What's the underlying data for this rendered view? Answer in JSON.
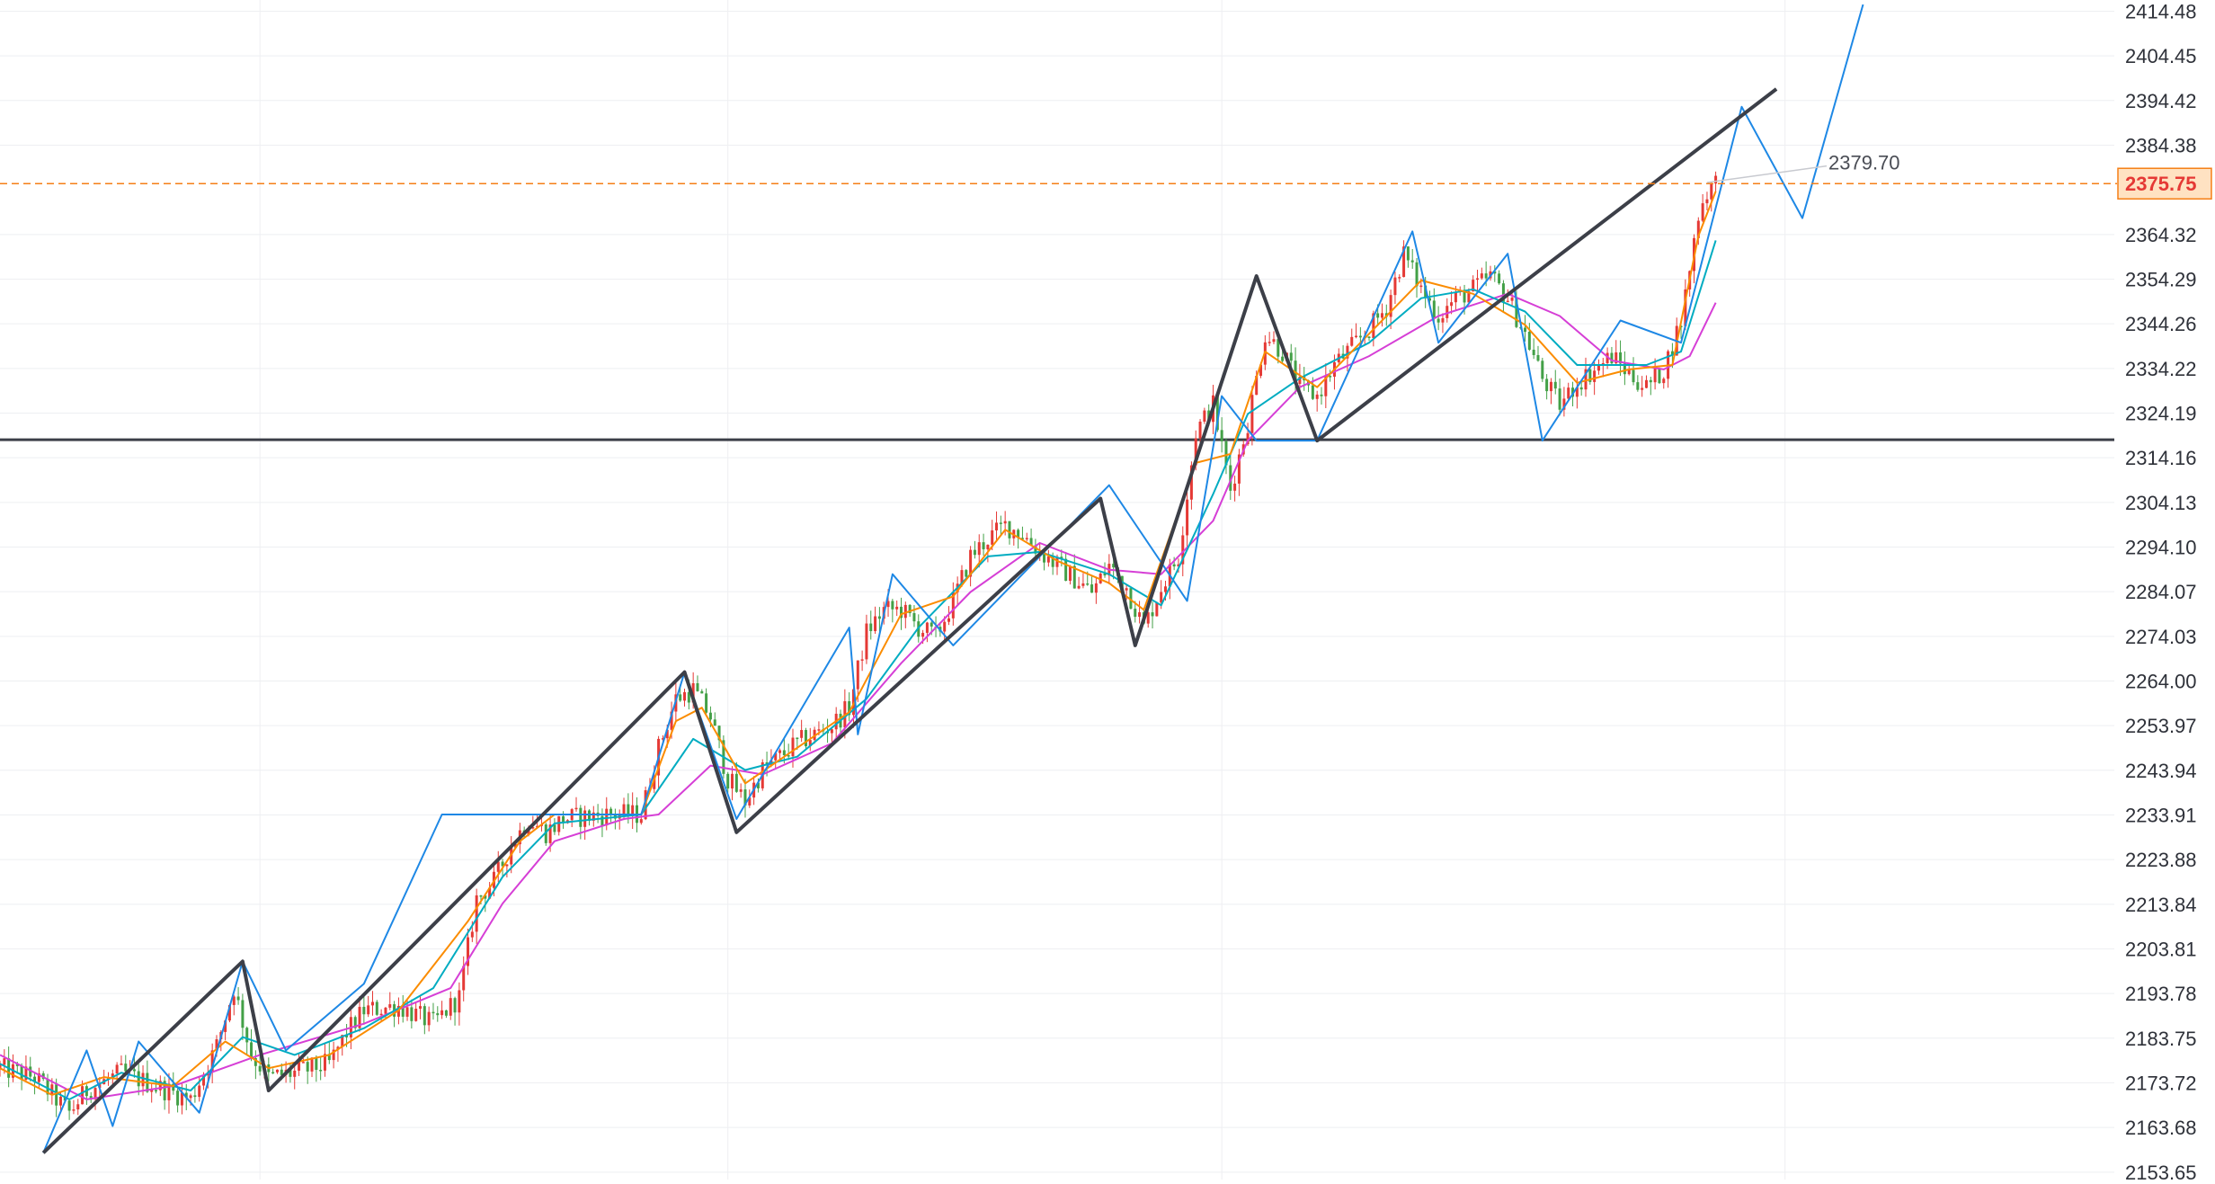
{
  "chart_data": {
    "type": "candlestick",
    "y_axis": {
      "position": "right",
      "tick_labels": [
        "2414.48",
        "2404.45",
        "2394.42",
        "2384.38",
        "2364.32",
        "2354.29",
        "2344.26",
        "2334.22",
        "2324.19",
        "2314.16",
        "2304.13",
        "2294.10",
        "2284.07",
        "2274.03",
        "2264.00",
        "2253.97",
        "2243.94",
        "2233.91",
        "2223.88",
        "2213.84",
        "2203.81",
        "2193.78",
        "2183.75",
        "2173.72",
        "2163.68",
        "2153.65"
      ],
      "range": [
        2152,
        2417
      ]
    },
    "x_range": [
      0,
      244
    ],
    "grid": true,
    "vertical_grid_x": [
      30,
      84,
      141,
      206
    ],
    "current_price": {
      "label": "2375.75",
      "value": 2375.75,
      "color": "#f57f17"
    },
    "annotation": {
      "label": "2379.70",
      "value": 2379.7
    },
    "horizontal_level": {
      "value": 2318.2,
      "color": "#2f3340"
    },
    "colors": {
      "up": "#e53935",
      "down": "#43a047",
      "zigzag_major": "#3c3f48",
      "zigzag_minor": "#1e88e5",
      "ma_fast": "#fb8c00",
      "ma_mid": "#00acc1",
      "ma_slow": "#d63fd6"
    },
    "candle_anchors": [
      [
        0,
        2177
      ],
      [
        4,
        2175
      ],
      [
        8,
        2167
      ],
      [
        10,
        2172
      ],
      [
        14,
        2176
      ],
      [
        18,
        2173
      ],
      [
        22,
        2170
      ],
      [
        25,
        2182
      ],
      [
        27,
        2195
      ],
      [
        29,
        2180
      ],
      [
        31,
        2175
      ],
      [
        34,
        2176
      ],
      [
        38,
        2178
      ],
      [
        40,
        2185
      ],
      [
        42,
        2190
      ],
      [
        46,
        2191
      ],
      [
        50,
        2187
      ],
      [
        53,
        2193
      ],
      [
        55,
        2215
      ],
      [
        57,
        2219
      ],
      [
        59,
        2227
      ],
      [
        61,
        2233
      ],
      [
        63,
        2230
      ],
      [
        65,
        2233
      ],
      [
        70,
        2234
      ],
      [
        74,
        2234
      ],
      [
        76,
        2249
      ],
      [
        78,
        2260
      ],
      [
        80,
        2262
      ],
      [
        82,
        2256
      ],
      [
        84,
        2242
      ],
      [
        86,
        2237
      ],
      [
        88,
        2244
      ],
      [
        92,
        2250
      ],
      [
        96,
        2254
      ],
      [
        98,
        2258
      ],
      [
        100,
        2275
      ],
      [
        102,
        2280
      ],
      [
        104,
        2280
      ],
      [
        106,
        2276
      ],
      [
        108,
        2274
      ],
      [
        110,
        2282
      ],
      [
        112,
        2292
      ],
      [
        114,
        2296
      ],
      [
        116,
        2299
      ],
      [
        118,
        2297
      ],
      [
        120,
        2293
      ],
      [
        122,
        2290
      ],
      [
        124,
        2287
      ],
      [
        126,
        2284
      ],
      [
        128,
        2290
      ],
      [
        130,
        2285
      ],
      [
        132,
        2276
      ],
      [
        134,
        2285
      ],
      [
        136,
        2292
      ],
      [
        138,
        2320
      ],
      [
        140,
        2326
      ],
      [
        142,
        2307
      ],
      [
        144,
        2322
      ],
      [
        146,
        2342
      ],
      [
        148,
        2338
      ],
      [
        150,
        2330
      ],
      [
        152,
        2328
      ],
      [
        154,
        2335
      ],
      [
        156,
        2339
      ],
      [
        158,
        2343
      ],
      [
        160,
        2348
      ],
      [
        162,
        2360
      ],
      [
        164,
        2352
      ],
      [
        166,
        2346
      ],
      [
        168,
        2350
      ],
      [
        170,
        2352
      ],
      [
        172,
        2355
      ],
      [
        174,
        2350
      ],
      [
        176,
        2342
      ],
      [
        178,
        2332
      ],
      [
        180,
        2326
      ],
      [
        182,
        2331
      ],
      [
        184,
        2334
      ],
      [
        186,
        2337
      ],
      [
        188,
        2333
      ],
      [
        190,
        2330
      ],
      [
        192,
        2334
      ],
      [
        194,
        2345
      ],
      [
        195,
        2357
      ],
      [
        196,
        2369
      ],
      [
        197,
        2374
      ],
      [
        198,
        2376
      ]
    ],
    "zigzag_major": [
      [
        5,
        2158
      ],
      [
        28,
        2201
      ],
      [
        31,
        2172
      ],
      [
        79,
        2266
      ],
      [
        85,
        2230
      ],
      [
        127,
        2305
      ],
      [
        131,
        2272
      ],
      [
        145,
        2355
      ],
      [
        152,
        2318
      ],
      [
        205,
        2397
      ]
    ],
    "zigzag_minor": [
      [
        5,
        2158
      ],
      [
        10,
        2181
      ],
      [
        13,
        2164
      ],
      [
        16,
        2183
      ],
      [
        23,
        2167
      ],
      [
        28,
        2201
      ],
      [
        33,
        2181
      ],
      [
        42,
        2196
      ],
      [
        51,
        2234
      ],
      [
        74,
        2234
      ],
      [
        79,
        2266
      ],
      [
        85,
        2233
      ],
      [
        98,
        2276
      ],
      [
        99,
        2252
      ],
      [
        103,
        2288
      ],
      [
        110,
        2272
      ],
      [
        128,
        2308
      ],
      [
        137,
        2282
      ],
      [
        141,
        2328
      ],
      [
        145,
        2318
      ],
      [
        152,
        2318
      ],
      [
        163,
        2365
      ],
      [
        166,
        2340
      ],
      [
        174,
        2360
      ],
      [
        178,
        2318
      ],
      [
        187,
        2345
      ],
      [
        194,
        2340
      ],
      [
        201,
        2393
      ],
      [
        208,
        2368
      ],
      [
        215,
        2416
      ]
    ],
    "ma_fast": [
      [
        0,
        2177
      ],
      [
        6,
        2171
      ],
      [
        12,
        2175
      ],
      [
        20,
        2173
      ],
      [
        26,
        2183
      ],
      [
        31,
        2177
      ],
      [
        38,
        2180
      ],
      [
        46,
        2190
      ],
      [
        54,
        2210
      ],
      [
        60,
        2228
      ],
      [
        64,
        2234
      ],
      [
        74,
        2234
      ],
      [
        78,
        2255
      ],
      [
        81,
        2258
      ],
      [
        86,
        2241
      ],
      [
        92,
        2249
      ],
      [
        98,
        2257
      ],
      [
        104,
        2279
      ],
      [
        110,
        2283
      ],
      [
        116,
        2298
      ],
      [
        122,
        2291
      ],
      [
        128,
        2286
      ],
      [
        132,
        2280
      ],
      [
        138,
        2313
      ],
      [
        142,
        2315
      ],
      [
        146,
        2338
      ],
      [
        152,
        2330
      ],
      [
        158,
        2342
      ],
      [
        164,
        2354
      ],
      [
        170,
        2351
      ],
      [
        176,
        2344
      ],
      [
        182,
        2331
      ],
      [
        188,
        2334
      ],
      [
        193,
        2335
      ],
      [
        196,
        2364
      ],
      [
        198,
        2374
      ]
    ],
    "ma_mid": [
      [
        0,
        2178
      ],
      [
        8,
        2170
      ],
      [
        14,
        2176
      ],
      [
        22,
        2172
      ],
      [
        28,
        2184
      ],
      [
        34,
        2180
      ],
      [
        42,
        2186
      ],
      [
        50,
        2195
      ],
      [
        58,
        2220
      ],
      [
        64,
        2232
      ],
      [
        74,
        2234
      ],
      [
        80,
        2251
      ],
      [
        86,
        2244
      ],
      [
        92,
        2247
      ],
      [
        100,
        2260
      ],
      [
        106,
        2276
      ],
      [
        114,
        2292
      ],
      [
        120,
        2293
      ],
      [
        128,
        2288
      ],
      [
        134,
        2281
      ],
      [
        140,
        2306
      ],
      [
        144,
        2324
      ],
      [
        150,
        2332
      ],
      [
        158,
        2340
      ],
      [
        164,
        2350
      ],
      [
        170,
        2352
      ],
      [
        176,
        2347
      ],
      [
        182,
        2335
      ],
      [
        190,
        2335
      ],
      [
        194,
        2338
      ],
      [
        198,
        2363
      ]
    ],
    "ma_slow": [
      [
        0,
        2180
      ],
      [
        10,
        2170
      ],
      [
        20,
        2173
      ],
      [
        30,
        2180
      ],
      [
        42,
        2187
      ],
      [
        52,
        2195
      ],
      [
        58,
        2214
      ],
      [
        64,
        2228
      ],
      [
        72,
        2233
      ],
      [
        76,
        2234
      ],
      [
        82,
        2245
      ],
      [
        88,
        2243
      ],
      [
        96,
        2250
      ],
      [
        104,
        2268
      ],
      [
        112,
        2284
      ],
      [
        120,
        2295
      ],
      [
        128,
        2289
      ],
      [
        134,
        2288
      ],
      [
        140,
        2300
      ],
      [
        144,
        2318
      ],
      [
        150,
        2330
      ],
      [
        158,
        2337
      ],
      [
        166,
        2346
      ],
      [
        174,
        2351
      ],
      [
        180,
        2346
      ],
      [
        186,
        2336
      ],
      [
        192,
        2334
      ],
      [
        195,
        2337
      ],
      [
        198,
        2349
      ]
    ]
  }
}
